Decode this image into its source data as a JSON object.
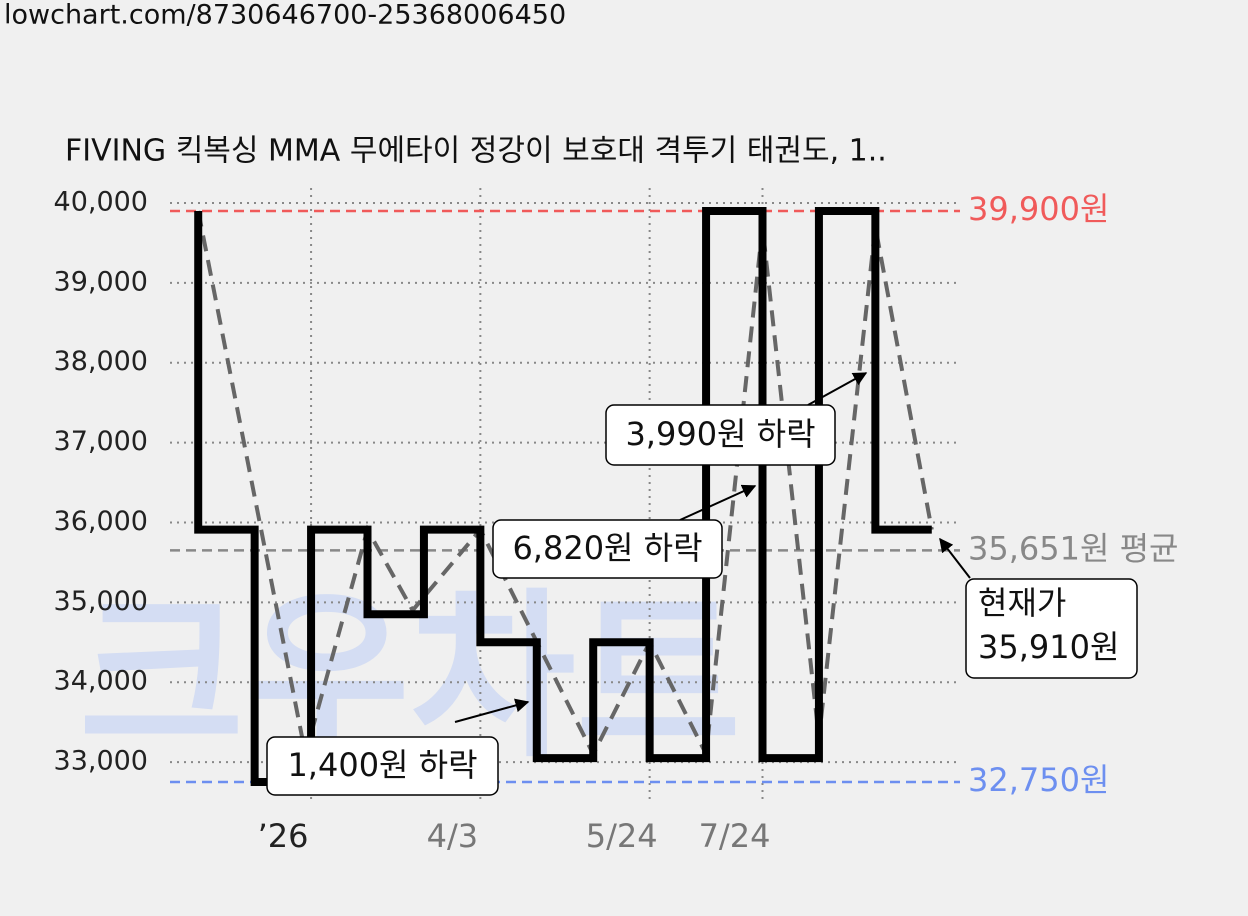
{
  "url": "lowchart.com/8730646700-25368006450",
  "watermark": "크우차트",
  "chart_data": {
    "type": "line",
    "title": "FIVING 킥복싱 MMA 무에타이 정강이 보호대 격투기 태권도, 1..",
    "xlim": [
      -0.5,
      13.5
    ],
    "xticks": [
      {
        "value": 2,
        "label": "’26"
      },
      {
        "value": 5,
        "label": "4/3"
      },
      {
        "value": 8,
        "label": "5/24"
      },
      {
        "value": 10,
        "label": "7/24"
      }
    ],
    "ylim": [
      32500,
      40100
    ],
    "yticks": [
      {
        "value": 33000,
        "label": "33,000"
      },
      {
        "value": 34000,
        "label": "34,000"
      },
      {
        "value": 35000,
        "label": "35,000"
      },
      {
        "value": 36000,
        "label": "36,000"
      },
      {
        "value": 37000,
        "label": "37,000"
      },
      {
        "value": 38000,
        "label": "38,000"
      },
      {
        "value": 39000,
        "label": "39,000"
      },
      {
        "value": 40000,
        "label": "40,000"
      }
    ],
    "grid": true,
    "series": [
      {
        "color": "#000000",
        "style": "solid",
        "x": [
          0,
          0,
          1,
          1,
          2,
          2,
          3,
          3,
          4,
          4,
          5,
          5,
          6,
          6,
          7,
          7,
          8,
          8,
          9,
          9,
          10,
          10,
          11,
          11,
          12,
          12,
          13
        ],
        "values": [
          39900,
          35910,
          35910,
          32750,
          32750,
          35910,
          35910,
          34850,
          34850,
          35910,
          35910,
          34500,
          34500,
          33050,
          33050,
          34500,
          34500,
          33050,
          33050,
          39900,
          39900,
          33050,
          33050,
          39900,
          39900,
          35910,
          35910
        ]
      },
      {
        "color": "#666666",
        "style": "dashed",
        "x": [
          0,
          1.9,
          3,
          3.8,
          5,
          7,
          8,
          9,
          10,
          11,
          12,
          13
        ],
        "values": [
          39900,
          33100,
          35910,
          34900,
          35910,
          33100,
          34500,
          33100,
          39700,
          33300,
          39700,
          35910
        ]
      }
    ],
    "reference_lines": [
      {
        "value": 39900,
        "label": "39,900원",
        "color": "#f05a5a"
      },
      {
        "value": 35651,
        "label": "35,651원 평균",
        "color": "#888888"
      },
      {
        "value": 32750,
        "label": "32,750원",
        "color": "#6d8ff0"
      }
    ],
    "annotations": [
      {
        "text": "1,400원 하락"
      },
      {
        "text": "6,820원 하락"
      },
      {
        "text": "3,990원 하락"
      },
      {
        "text": [
          "현재가",
          "35,910원"
        ]
      }
    ]
  }
}
